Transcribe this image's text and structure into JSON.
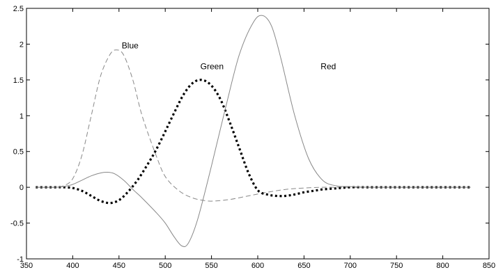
{
  "chart_data": {
    "type": "line",
    "title": "",
    "xlabel": "",
    "ylabel": "",
    "xlim": [
      350,
      850
    ],
    "ylim": [
      -1,
      2.5
    ],
    "grid": false,
    "x_ticks": [
      "350",
      "400",
      "450",
      "500",
      "550",
      "600",
      "650",
      "700",
      "750",
      "800",
      "850"
    ],
    "y_ticks": [
      "2.5",
      "2",
      "1.5",
      "1",
      "0.5",
      "0",
      "-0.5",
      "-1"
    ],
    "series": [
      {
        "name": "Blue",
        "style": "dashed",
        "color": "#888888",
        "x": [
          360,
          380,
          390,
          400,
          410,
          420,
          430,
          440,
          447,
          455,
          465,
          475,
          490,
          500,
          515,
          530,
          545,
          555,
          570,
          590,
          610,
          630,
          650,
          670,
          690,
          710,
          730,
          760,
          800,
          830
        ],
        "y": [
          0,
          0,
          0.02,
          0.12,
          0.45,
          1.0,
          1.55,
          1.85,
          1.92,
          1.85,
          1.5,
          1.0,
          0.45,
          0.15,
          -0.05,
          -0.15,
          -0.19,
          -0.19,
          -0.17,
          -0.12,
          -0.07,
          -0.03,
          -0.01,
          0,
          0,
          0,
          0,
          0,
          0,
          0
        ]
      },
      {
        "name": "Green",
        "style": "dotted",
        "color": "#000000",
        "x": [
          360,
          380,
          390,
          400,
          410,
          420,
          430,
          440,
          450,
          460,
          470,
          480,
          490,
          500,
          510,
          520,
          530,
          540,
          550,
          560,
          570,
          580,
          590,
          600,
          610,
          620,
          630,
          640,
          650,
          660,
          670,
          680,
          690,
          700,
          720,
          740,
          760,
          780,
          800,
          830
        ],
        "y": [
          0,
          0,
          0,
          -0.01,
          -0.05,
          -0.12,
          -0.19,
          -0.22,
          -0.18,
          -0.06,
          0.1,
          0.3,
          0.52,
          0.78,
          1.05,
          1.3,
          1.46,
          1.5,
          1.42,
          1.22,
          0.9,
          0.55,
          0.2,
          -0.04,
          -0.1,
          -0.12,
          -0.12,
          -0.1,
          -0.07,
          -0.05,
          -0.03,
          -0.02,
          -0.01,
          0,
          0,
          0,
          0,
          0,
          0,
          0
        ]
      },
      {
        "name": "Red",
        "style": "solid",
        "color": "#888888",
        "x": [
          360,
          380,
          390,
          400,
          410,
          420,
          430,
          437,
          445,
          455,
          465,
          475,
          490,
          500,
          510,
          518,
          525,
          535,
          550,
          565,
          580,
          595,
          605,
          615,
          625,
          640,
          655,
          670,
          685,
          700,
          720,
          750,
          800,
          830
        ],
        "y": [
          0,
          0,
          0.01,
          0.04,
          0.1,
          0.16,
          0.2,
          0.21,
          0.19,
          0.1,
          -0.03,
          -0.15,
          -0.35,
          -0.5,
          -0.7,
          -0.82,
          -0.78,
          -0.45,
          0.3,
          1.1,
          1.85,
          2.3,
          2.4,
          2.25,
          1.8,
          1.0,
          0.4,
          0.1,
          0.02,
          0.01,
          0,
          0,
          0,
          0
        ]
      }
    ],
    "annotations": [
      {
        "text": "Blue",
        "x": 453,
        "y": 1.94
      },
      {
        "text": "Green",
        "x": 538,
        "y": 1.65
      },
      {
        "text": "Red",
        "x": 668,
        "y": 1.65
      }
    ]
  }
}
